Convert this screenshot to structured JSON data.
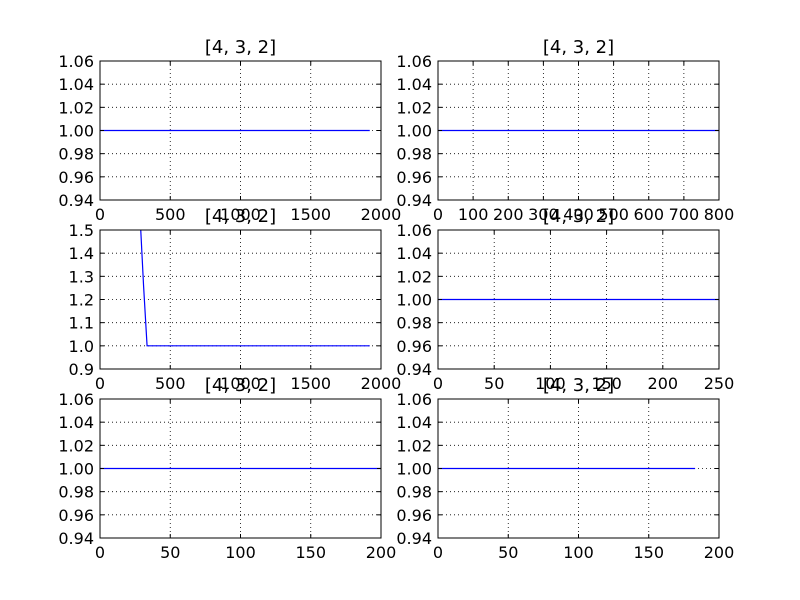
{
  "chart_data": [
    {
      "type": "line",
      "title": "[4, 3, 2]",
      "xlabel": "",
      "ylabel": "",
      "xlim": [
        0,
        2000
      ],
      "ylim": [
        0.94,
        1.06
      ],
      "xticks": [
        0,
        500,
        1000,
        1500,
        2000
      ],
      "xtick_labels": [
        "0",
        "500",
        "1000",
        "1500",
        "2000"
      ],
      "yticks": [
        0.94,
        0.96,
        0.98,
        1.0,
        1.02,
        1.04,
        1.06
      ],
      "ytick_labels": [
        "0.94",
        "0.96",
        "0.98",
        "1.00",
        "1.02",
        "1.04",
        "1.06"
      ],
      "grid": true,
      "series": [
        {
          "color": "#0000ff",
          "x": [
            0,
            1920
          ],
          "y": [
            1.0,
            1.0
          ]
        }
      ]
    },
    {
      "type": "line",
      "title": "[4, 3, 2]",
      "xlabel": "",
      "ylabel": "",
      "xlim": [
        0,
        800
      ],
      "ylim": [
        0.94,
        1.06
      ],
      "xticks": [
        0,
        100,
        200,
        300,
        400,
        500,
        600,
        700,
        800
      ],
      "xtick_labels": [
        "0",
        "100",
        "200",
        "300",
        "400",
        "500",
        "600",
        "700",
        "800"
      ],
      "yticks": [
        0.94,
        0.96,
        0.98,
        1.0,
        1.02,
        1.04,
        1.06
      ],
      "ytick_labels": [
        "0.94",
        "0.96",
        "0.98",
        "1.00",
        "1.02",
        "1.04",
        "1.06"
      ],
      "grid": true,
      "series": [
        {
          "color": "#0000ff",
          "x": [
            0,
            800
          ],
          "y": [
            1.0,
            1.0
          ]
        }
      ]
    },
    {
      "type": "line",
      "title": "[4, 3, 2]",
      "xlabel": "",
      "ylabel": "",
      "xlim": [
        0,
        2000
      ],
      "ylim": [
        0.9,
        1.5
      ],
      "xticks": [
        0,
        500,
        1000,
        1500,
        2000
      ],
      "xtick_labels": [
        "0",
        "500",
        "1000",
        "1500",
        "2000"
      ],
      "yticks": [
        0.9,
        1.0,
        1.1,
        1.2,
        1.3,
        1.4,
        1.5
      ],
      "ytick_labels": [
        "0.9",
        "1.0",
        "1.1",
        "1.2",
        "1.3",
        "1.4",
        "1.5"
      ],
      "grid": true,
      "series": [
        {
          "color": "#0000ff",
          "x": [
            290,
            310,
            335,
            1920
          ],
          "y": [
            1.5,
            1.26,
            1.0,
            1.0
          ]
        }
      ]
    },
    {
      "type": "line",
      "title": "[4, 3, 2]",
      "xlabel": "",
      "ylabel": "",
      "xlim": [
        0,
        250
      ],
      "ylim": [
        0.94,
        1.06
      ],
      "xticks": [
        0,
        50,
        100,
        150,
        200,
        250
      ],
      "xtick_labels": [
        "0",
        "50",
        "100",
        "150",
        "200",
        "250"
      ],
      "yticks": [
        0.94,
        0.96,
        0.98,
        1.0,
        1.02,
        1.04,
        1.06
      ],
      "ytick_labels": [
        "0.94",
        "0.96",
        "0.98",
        "1.00",
        "1.02",
        "1.04",
        "1.06"
      ],
      "grid": true,
      "series": [
        {
          "color": "#0000ff",
          "x": [
            0,
            250
          ],
          "y": [
            1.0,
            1.0
          ]
        }
      ]
    },
    {
      "type": "line",
      "title": "[4, 3, 2]",
      "xlabel": "",
      "ylabel": "",
      "xlim": [
        0,
        200
      ],
      "ylim": [
        0.94,
        1.06
      ],
      "xticks": [
        0,
        50,
        100,
        150,
        200
      ],
      "xtick_labels": [
        "0",
        "50",
        "100",
        "150",
        "200"
      ],
      "yticks": [
        0.94,
        0.96,
        0.98,
        1.0,
        1.02,
        1.04,
        1.06
      ],
      "ytick_labels": [
        "0.94",
        "0.96",
        "0.98",
        "1.00",
        "1.02",
        "1.04",
        "1.06"
      ],
      "grid": true,
      "series": [
        {
          "color": "#0000ff",
          "x": [
            0,
            200
          ],
          "y": [
            1.0,
            1.0
          ]
        }
      ]
    },
    {
      "type": "line",
      "title": "[4, 3, 2]",
      "xlabel": "",
      "ylabel": "",
      "xlim": [
        0,
        200
      ],
      "ylim": [
        0.94,
        1.06
      ],
      "xticks": [
        0,
        50,
        100,
        150,
        200
      ],
      "xtick_labels": [
        "0",
        "50",
        "100",
        "150",
        "200"
      ],
      "yticks": [
        0.94,
        0.96,
        0.98,
        1.0,
        1.02,
        1.04,
        1.06
      ],
      "ytick_labels": [
        "0.94",
        "0.96",
        "0.98",
        "1.00",
        "1.02",
        "1.04",
        "1.06"
      ],
      "grid": true,
      "series": [
        {
          "color": "#0000ff",
          "x": [
            0,
            183
          ],
          "y": [
            1.0,
            1.0
          ]
        }
      ]
    }
  ]
}
